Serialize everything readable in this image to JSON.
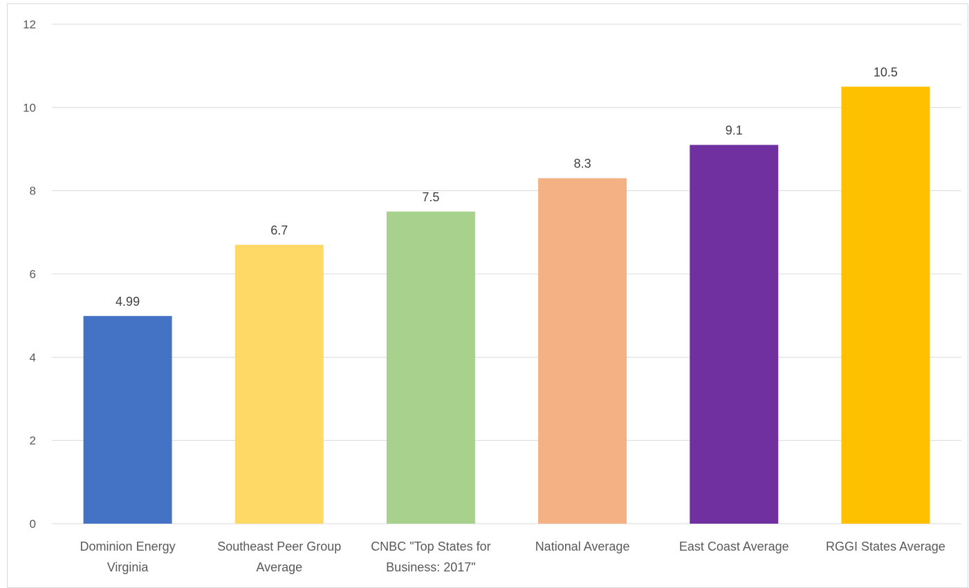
{
  "chart_data": {
    "type": "bar",
    "categories": [
      [
        "Dominion Energy",
        "Virginia"
      ],
      [
        "Southeast Peer Group",
        "Average"
      ],
      [
        "CNBC \"Top States for",
        "Business: 2017\""
      ],
      [
        "National Average"
      ],
      [
        "East Coast Average"
      ],
      [
        "RGGI States Average"
      ]
    ],
    "values": [
      4.99,
      6.7,
      7.5,
      8.3,
      9.1,
      10.5
    ],
    "data_labels": [
      "4.99",
      "6.7",
      "7.5",
      "8.3",
      "9.1",
      "10.5"
    ],
    "colors": [
      "#4472c4",
      "#ffd966",
      "#a9d18e",
      "#f4b183",
      "#7030a0",
      "#ffc000"
    ],
    "ylim": [
      0,
      12
    ],
    "y_ticks": [
      0,
      2,
      4,
      6,
      8,
      10,
      12
    ],
    "grid": true
  }
}
